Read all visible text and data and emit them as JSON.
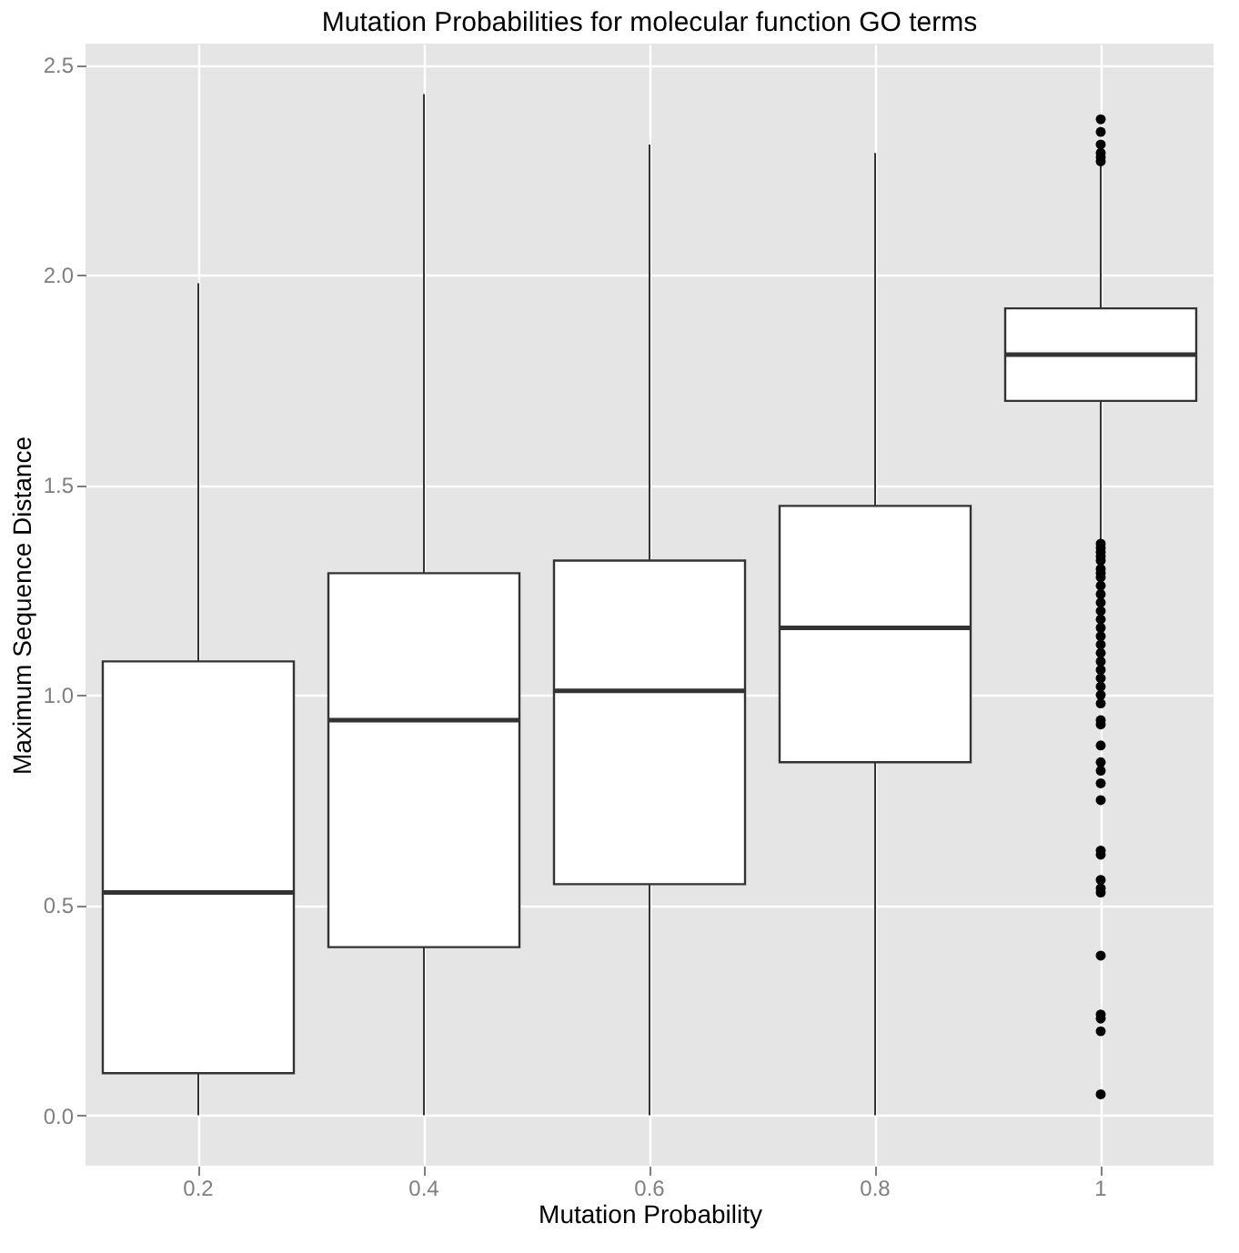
{
  "chart_data": {
    "type": "box",
    "title": "Mutation Probabilities for molecular function GO terms",
    "xlabel": "Mutation Probability",
    "ylabel": "Maximum Sequence Distance",
    "categories": [
      "0.2",
      "0.4",
      "0.6",
      "0.8",
      "1"
    ],
    "boxes": [
      {
        "low": 0,
        "q1": 0.1,
        "median": 0.53,
        "q3": 1.08,
        "high": 1.98
      },
      {
        "low": 0,
        "q1": 0.4,
        "median": 0.94,
        "q3": 1.29,
        "high": 2.43
      },
      {
        "low": 0,
        "q1": 0.55,
        "median": 1.01,
        "q3": 1.32,
        "high": 2.31
      },
      {
        "low": 0,
        "q1": 0.84,
        "median": 1.16,
        "q3": 1.45,
        "high": 2.29
      },
      {
        "low": 1.37,
        "q1": 1.7,
        "median": 1.81,
        "q3": 1.92,
        "high": 2.26,
        "outliers": [
          2.37,
          2.34,
          2.31,
          2.29,
          2.28,
          2.27,
          1.36,
          1.35,
          1.34,
          1.33,
          1.32,
          1.3,
          1.29,
          1.28,
          1.26,
          1.24,
          1.22,
          1.2,
          1.18,
          1.16,
          1.14,
          1.12,
          1.1,
          1.08,
          1.06,
          1.04,
          1.02,
          1.0,
          0.98,
          0.94,
          0.93,
          0.88,
          0.84,
          0.82,
          0.79,
          0.75,
          0.63,
          0.62,
          0.56,
          0.54,
          0.53,
          0.38,
          0.24,
          0.23,
          0.2,
          0.05
        ]
      }
    ],
    "ylim": [
      -0.12,
      2.55
    ],
    "yticks": [
      {
        "value": 0,
        "label": "0.0"
      },
      {
        "value": 0.5,
        "label": "0.5"
      },
      {
        "value": 1,
        "label": "1.0"
      },
      {
        "value": 1.5,
        "label": "1.5"
      },
      {
        "value": 2,
        "label": "2.0"
      },
      {
        "value": 2.5,
        "label": "2.5"
      }
    ],
    "grid": true
  }
}
